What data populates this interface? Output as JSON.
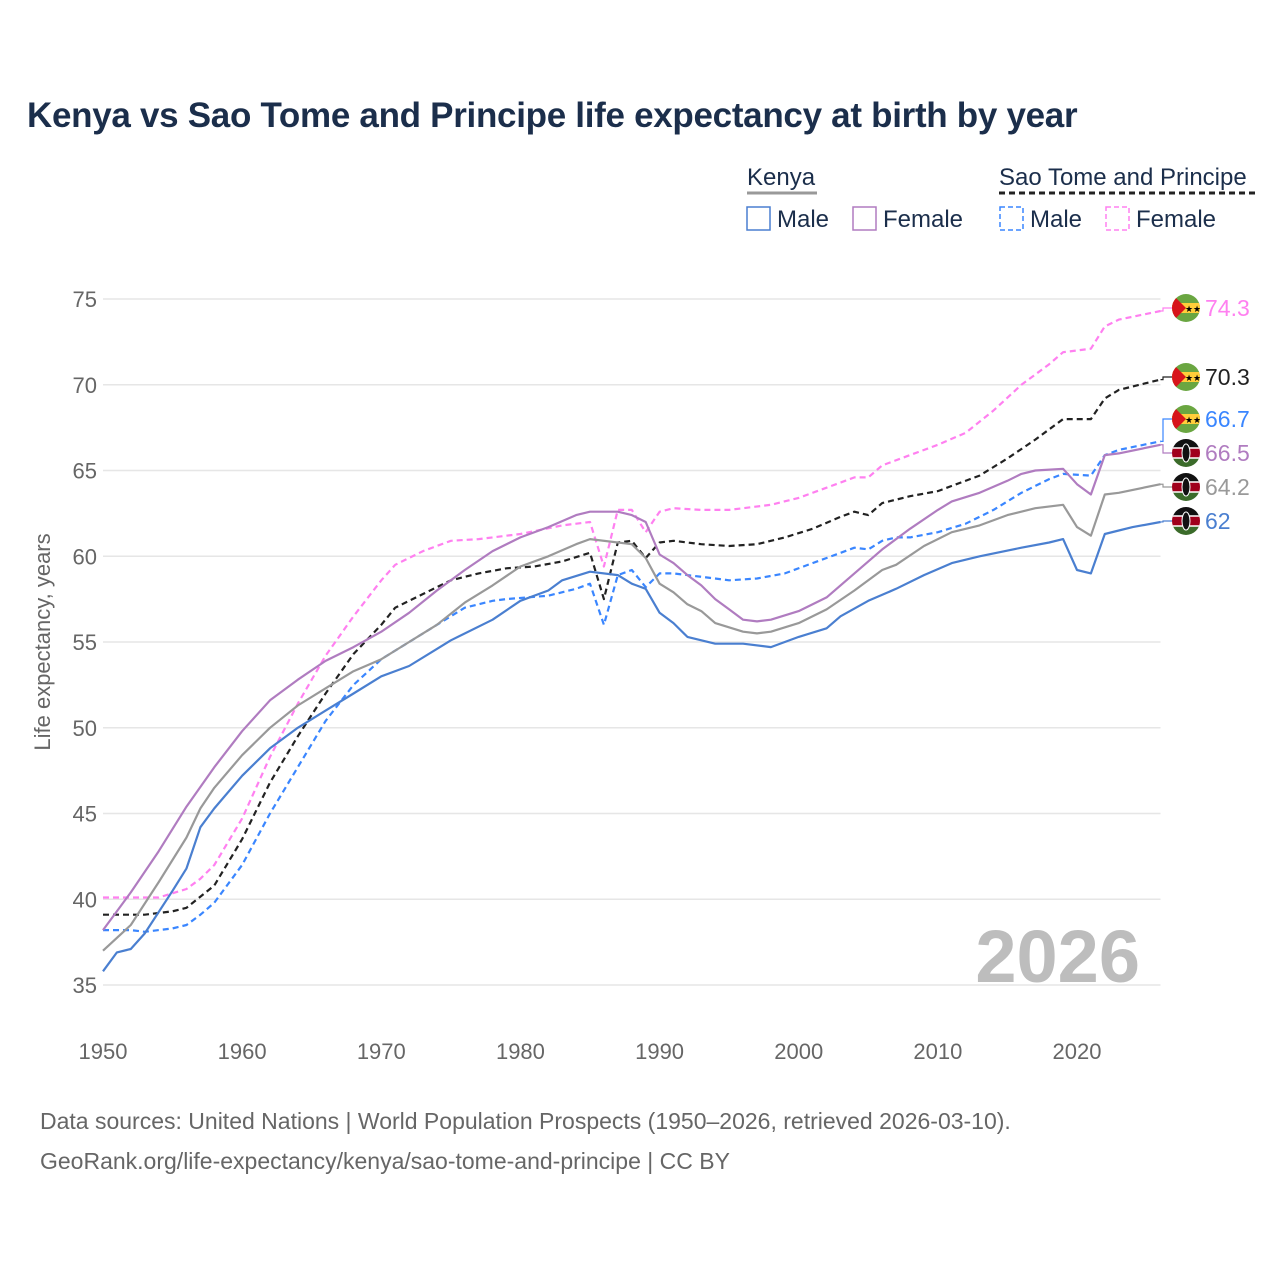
{
  "title": "Kenya vs Sao Tome and Principe life expectancy at birth by year",
  "watermark_year": "2026",
  "source_line1": "Data sources: United Nations | World Population Prospects (1950–2026, retrieved 2026-03-10).",
  "source_line2": "GeoRank.org/life-expectancy/kenya/sao-tome-and-principe | CC BY",
  "legend": {
    "groups": [
      {
        "name": "Kenya",
        "style": "solid",
        "color": "#999999",
        "items": [
          {
            "label": "Male",
            "color": "#4a7fd0"
          },
          {
            "label": "Female",
            "color": "#b07cc0"
          }
        ]
      },
      {
        "name": "Sao Tome and Principe",
        "style": "dashed",
        "color": "#222222",
        "items": [
          {
            "label": "Male",
            "color": "#3a86ff"
          },
          {
            "label": "Female",
            "color": "#ff80f0"
          }
        ]
      }
    ]
  },
  "chart_data": {
    "type": "line",
    "title": "Kenya vs Sao Tome and Principe life expectancy at birth by year",
    "xlabel": "",
    "ylabel": "Life expectancy, years",
    "xlim": [
      1950,
      2026
    ],
    "ylim": [
      35,
      75
    ],
    "xticks": [
      1950,
      1960,
      1970,
      1980,
      1990,
      2000,
      2010,
      2020
    ],
    "yticks": [
      35,
      40,
      45,
      50,
      55,
      60,
      65,
      70,
      75
    ],
    "grid": true,
    "legend_position": "top-right",
    "series": [
      {
        "name": "Sao Tome and Principe Female",
        "country": "stp",
        "dashed": true,
        "color": "#ff80f0",
        "end_label": "74.3",
        "x": [
          1950,
          1954,
          1956,
          1957,
          1958,
          1960,
          1962,
          1964,
          1966,
          1968,
          1970,
          1971,
          1973,
          1975,
          1977,
          1980,
          1983,
          1985,
          1986,
          1987,
          1988,
          1989,
          1990,
          1991,
          1993,
          1995,
          1998,
          2000,
          2002,
          2004,
          2005,
          2006,
          2008,
          2010,
          2012,
          2014,
          2016,
          2018,
          2019,
          2021,
          2022,
          2023,
          2026
        ],
        "y": [
          40.1,
          40.1,
          40.6,
          41.2,
          42.0,
          44.7,
          48.3,
          51.4,
          54.2,
          56.5,
          58.6,
          59.5,
          60.3,
          60.9,
          61.0,
          61.3,
          61.8,
          62.0,
          59.4,
          62.7,
          62.7,
          61.4,
          62.6,
          62.8,
          62.7,
          62.7,
          63.0,
          63.4,
          64.0,
          64.6,
          64.6,
          65.3,
          65.9,
          66.5,
          67.2,
          68.5,
          70.0,
          71.2,
          71.9,
          72.1,
          73.4,
          73.8,
          74.3
        ]
      },
      {
        "name": "Sao Tome and Principe",
        "country": "stp",
        "dashed": true,
        "color": "#222222",
        "end_label": "70.3",
        "x": [
          1950,
          1953,
          1955,
          1956,
          1958,
          1960,
          1962,
          1964,
          1966,
          1968,
          1970,
          1971,
          1973,
          1975,
          1977,
          1979,
          1981,
          1983,
          1985,
          1986,
          1987,
          1988,
          1989,
          1990,
          1991,
          1993,
          1995,
          1997,
          1999,
          2001,
          2003,
          2004,
          2005,
          2006,
          2008,
          2010,
          2011,
          2013,
          2015,
          2017,
          2019,
          2021,
          2022,
          2023,
          2026
        ],
        "y": [
          39.1,
          39.1,
          39.3,
          39.5,
          40.8,
          43.5,
          46.8,
          49.5,
          52.0,
          54.3,
          56.0,
          57.0,
          57.8,
          58.6,
          59.0,
          59.3,
          59.4,
          59.7,
          60.2,
          57.5,
          60.8,
          60.9,
          59.9,
          60.8,
          60.9,
          60.7,
          60.6,
          60.7,
          61.1,
          61.6,
          62.3,
          62.6,
          62.4,
          63.1,
          63.5,
          63.8,
          64.1,
          64.7,
          65.7,
          66.8,
          68.0,
          68.0,
          69.2,
          69.7,
          70.3
        ]
      },
      {
        "name": "Sao Tome and Principe Male",
        "country": "stp",
        "dashed": true,
        "color": "#3a86ff",
        "end_label": "66.7",
        "x": [
          1950,
          1952,
          1953,
          1955,
          1956,
          1957,
          1958,
          1960,
          1962,
          1964,
          1966,
          1968,
          1970,
          1972,
          1974,
          1976,
          1978,
          1979,
          1982,
          1984,
          1985,
          1986,
          1987,
          1988,
          1989,
          1990,
          1991,
          1993,
          1995,
          1997,
          1999,
          2001,
          2002,
          2004,
          2005,
          2006,
          2007,
          2008,
          2010,
          2012,
          2014,
          2016,
          2018,
          2019,
          2021,
          2022,
          2023,
          2026
        ],
        "y": [
          38.2,
          38.2,
          38.1,
          38.3,
          38.5,
          39.1,
          39.8,
          42.0,
          45.0,
          47.7,
          50.4,
          52.5,
          54.0,
          55.0,
          56.0,
          57.0,
          57.4,
          57.5,
          57.7,
          58.1,
          58.4,
          56.0,
          58.9,
          59.2,
          58.2,
          59.0,
          59.0,
          58.8,
          58.6,
          58.7,
          59.0,
          59.6,
          59.9,
          60.5,
          60.4,
          60.9,
          61.1,
          61.1,
          61.4,
          61.9,
          62.7,
          63.7,
          64.5,
          64.8,
          64.7,
          65.9,
          66.2,
          66.7
        ]
      },
      {
        "name": "Kenya Female",
        "country": "ken",
        "dashed": false,
        "color": "#b07cc0",
        "end_label": "66.5",
        "x": [
          1950,
          1952,
          1954,
          1956,
          1958,
          1960,
          1962,
          1964,
          1966,
          1968,
          1970,
          1972,
          1974,
          1976,
          1978,
          1980,
          1982,
          1984,
          1985,
          1987,
          1988,
          1989,
          1990,
          1991,
          1992,
          1993,
          1994,
          1995,
          1996,
          1997,
          1998,
          2000,
          2002,
          2004,
          2006,
          2008,
          2010,
          2011,
          2013,
          2015,
          2016,
          2017,
          2019,
          2020,
          2021,
          2022,
          2023,
          2026
        ],
        "y": [
          38.2,
          40.4,
          42.8,
          45.4,
          47.7,
          49.8,
          51.6,
          52.8,
          53.9,
          54.7,
          55.6,
          56.7,
          58.0,
          59.2,
          60.3,
          61.1,
          61.7,
          62.4,
          62.6,
          62.6,
          62.4,
          62.0,
          60.1,
          59.6,
          58.9,
          58.3,
          57.5,
          56.9,
          56.3,
          56.2,
          56.3,
          56.8,
          57.6,
          59.0,
          60.4,
          61.6,
          62.7,
          63.2,
          63.7,
          64.4,
          64.8,
          65.0,
          65.1,
          64.2,
          63.6,
          65.9,
          66.0,
          66.5
        ]
      },
      {
        "name": "Kenya",
        "country": "ken",
        "dashed": false,
        "color": "#999999",
        "end_label": "64.2",
        "x": [
          1950,
          1952,
          1954,
          1956,
          1957,
          1958,
          1960,
          1962,
          1964,
          1966,
          1968,
          1970,
          1972,
          1974,
          1976,
          1978,
          1980,
          1982,
          1984,
          1985,
          1988,
          1989,
          1990,
          1991,
          1992,
          1993,
          1994,
          1996,
          1997,
          1998,
          2000,
          2002,
          2004,
          2006,
          2007,
          2009,
          2011,
          2013,
          2015,
          2017,
          2019,
          2020,
          2021,
          2022,
          2023,
          2026
        ],
        "y": [
          37.0,
          38.5,
          41.0,
          43.6,
          45.3,
          46.5,
          48.4,
          50.0,
          51.3,
          52.3,
          53.3,
          54.0,
          55.0,
          56.0,
          57.3,
          58.3,
          59.4,
          60.0,
          60.7,
          61.0,
          60.7,
          59.9,
          58.4,
          57.9,
          57.2,
          56.8,
          56.1,
          55.6,
          55.5,
          55.6,
          56.1,
          56.9,
          58.0,
          59.2,
          59.5,
          60.6,
          61.4,
          61.8,
          62.4,
          62.8,
          63.0,
          61.7,
          61.2,
          63.6,
          63.7,
          64.2
        ]
      },
      {
        "name": "Kenya Male",
        "country": "ken",
        "dashed": false,
        "color": "#4a7fd0",
        "end_label": "62",
        "x": [
          1950,
          1951,
          1952,
          1953,
          1955,
          1956,
          1957,
          1958,
          1960,
          1962,
          1964,
          1966,
          1968,
          1970,
          1972,
          1974,
          1975,
          1978,
          1980,
          1982,
          1983,
          1985,
          1987,
          1988,
          1989,
          1990,
          1991,
          1992,
          1994,
          1996,
          1998,
          2000,
          2002,
          2003,
          2005,
          2007,
          2009,
          2011,
          2013,
          2016,
          2018,
          2019,
          2020,
          2021,
          2022,
          2023,
          2024,
          2026
        ],
        "y": [
          35.8,
          36.9,
          37.1,
          38.0,
          40.5,
          41.8,
          44.2,
          45.3,
          47.2,
          48.8,
          50.0,
          51.0,
          52.0,
          53.0,
          53.6,
          54.6,
          55.1,
          56.3,
          57.4,
          58.0,
          58.6,
          59.1,
          58.9,
          58.4,
          58.1,
          56.7,
          56.1,
          55.3,
          54.9,
          54.9,
          54.7,
          55.3,
          55.8,
          56.5,
          57.4,
          58.1,
          58.9,
          59.6,
          60.0,
          60.5,
          60.8,
          61.0,
          59.2,
          59.0,
          61.3,
          61.5,
          61.7,
          62.0
        ]
      }
    ]
  }
}
